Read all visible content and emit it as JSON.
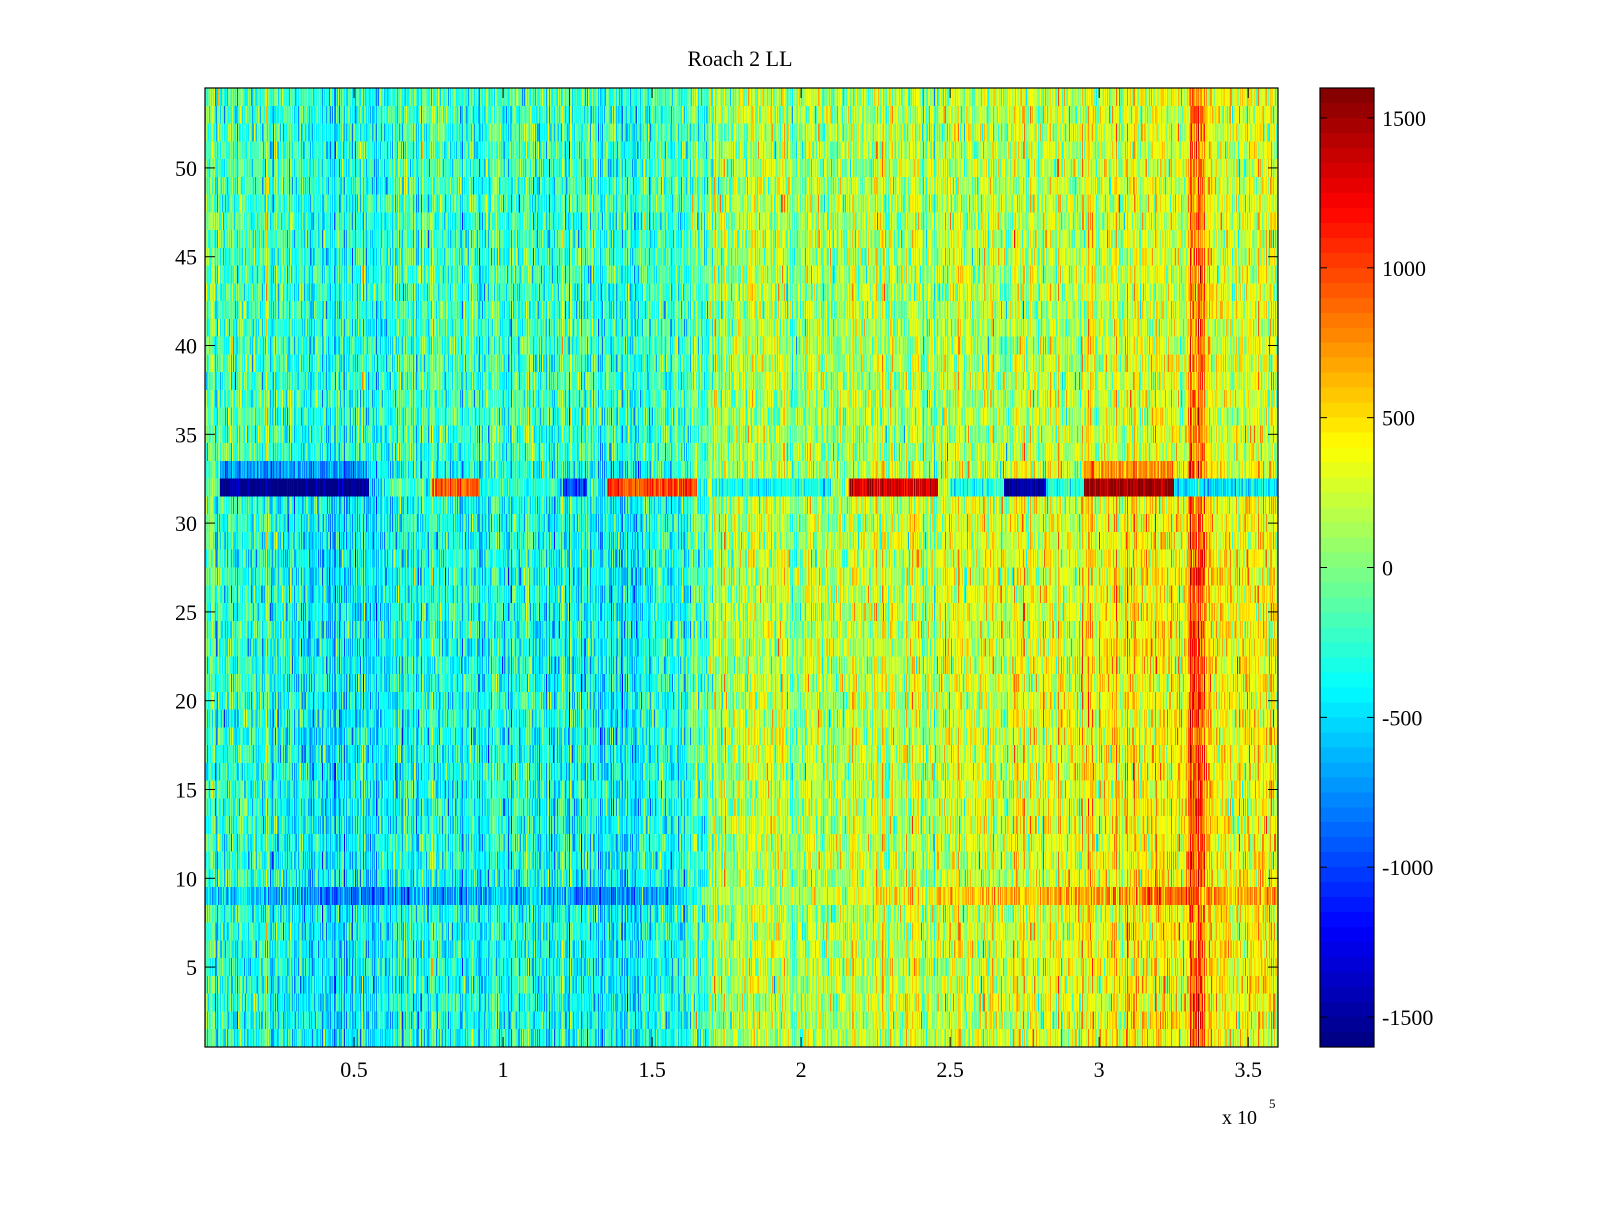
{
  "chart_data": {
    "type": "heatmap",
    "title": "Roach 2 LL",
    "xlabel": "",
    "ylabel": "",
    "x_multiplier_label": "x 10",
    "x_multiplier_exponent": "5",
    "xlim": [
      0,
      3.6
    ],
    "ylim": [
      0.5,
      54.5
    ],
    "n_rows": 54,
    "x_ticks": [
      0.5,
      1,
      1.5,
      2,
      2.5,
      3,
      3.5
    ],
    "x_tick_labels": [
      "0.5",
      "1",
      "1.5",
      "2",
      "2.5",
      "3",
      "3.5"
    ],
    "y_ticks": [
      5,
      10,
      15,
      20,
      25,
      30,
      35,
      40,
      45,
      50
    ],
    "y_tick_labels": [
      "5",
      "10",
      "15",
      "20",
      "25",
      "30",
      "35",
      "40",
      "45",
      "50"
    ],
    "colorbar": {
      "colormap": "jet",
      "clim": [
        -1600,
        1600
      ],
      "ticks": [
        -1500,
        -1000,
        -500,
        0,
        500,
        1000,
        1500
      ],
      "tick_labels": [
        "-1500",
        "-1000",
        "-500",
        "0",
        "500",
        "1000",
        "1500"
      ]
    },
    "trend_profile": {
      "x": [
        0,
        0.1,
        0.2,
        0.3,
        0.4,
        0.5,
        0.6,
        0.7,
        0.8,
        0.9,
        1.0,
        1.1,
        1.2,
        1.3,
        1.4,
        1.5,
        1.6,
        1.65,
        1.7,
        1.8,
        1.9,
        2.0,
        2.1,
        2.2,
        2.3,
        2.4,
        2.5,
        2.6,
        2.7,
        2.8,
        2.9,
        3.0,
        3.1,
        3.2,
        3.3,
        3.35,
        3.4,
        3.5,
        3.6
      ],
      "level": [
        -220,
        -280,
        -330,
        -380,
        -420,
        -430,
        -440,
        -380,
        -350,
        -330,
        -320,
        -330,
        -360,
        -400,
        -420,
        -360,
        -300,
        -150,
        80,
        100,
        110,
        130,
        150,
        170,
        200,
        230,
        260,
        280,
        300,
        320,
        340,
        370,
        400,
        440,
        500,
        420,
        380,
        360,
        340
      ],
      "top_rows_damping": 0.35,
      "noise_amplitude": 380
    },
    "highlight_row": {
      "row": 32,
      "segments": [
        {
          "x": [
            0.05,
            0.55
          ],
          "value": -1600
        },
        {
          "x": [
            0.62,
            0.72
          ],
          "value": -150
        },
        {
          "x": [
            0.76,
            0.92
          ],
          "value": 900
        },
        {
          "x": [
            0.95,
            1.18
          ],
          "value": -250
        },
        {
          "x": [
            1.2,
            1.28
          ],
          "value": -1000
        },
        {
          "x": [
            1.35,
            1.65
          ],
          "value": 1000
        },
        {
          "x": [
            1.7,
            2.1
          ],
          "value": -350
        },
        {
          "x": [
            2.16,
            2.46
          ],
          "value": 1350
        },
        {
          "x": [
            2.5,
            2.68
          ],
          "value": -300
        },
        {
          "x": [
            2.68,
            2.82
          ],
          "value": -1450
        },
        {
          "x": [
            2.82,
            2.95
          ],
          "value": -300
        },
        {
          "x": [
            2.95,
            3.25
          ],
          "value": 1500
        },
        {
          "x": [
            3.25,
            3.6
          ],
          "value": -500
        }
      ]
    },
    "highlight_row_neighbors": {
      "row": 33,
      "segments": [
        {
          "x": [
            0.05,
            0.55
          ],
          "value": -900
        },
        {
          "x": [
            2.95,
            3.25
          ],
          "value": 900
        }
      ]
    },
    "streak_row": {
      "row": 9,
      "boost_scale": 1.9
    },
    "hot_column_x": 3.33
  }
}
